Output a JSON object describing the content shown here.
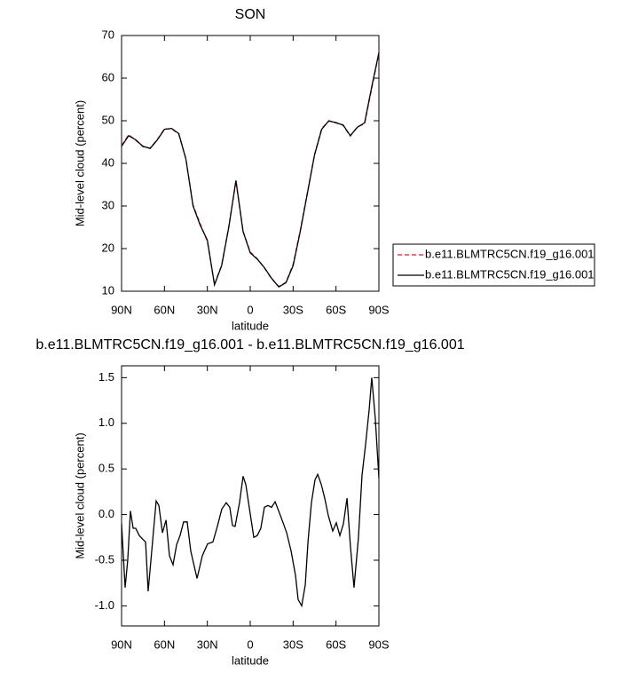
{
  "chart_data": [
    {
      "type": "line",
      "title": "SON",
      "xlabel": "latitude",
      "ylabel": "Mid-level cloud (percent)",
      "x": [
        90,
        85,
        80,
        75,
        70,
        65,
        60,
        55,
        50,
        45,
        40,
        35,
        30,
        25,
        20,
        15,
        10,
        5,
        0,
        -5,
        -10,
        -15,
        -20,
        -25,
        -30,
        -35,
        -40,
        -45,
        -50,
        -55,
        -60,
        -65,
        -70,
        -75,
        -80,
        -85,
        -90
      ],
      "series": [
        {
          "name": "b.e11.BLMTRC5CN.f19_g16.001",
          "color": "#d62020",
          "dash": true,
          "values": [
            44.2,
            46.7,
            45.4,
            43.9,
            43.6,
            45.6,
            48.1,
            48.1,
            46.9,
            41.1,
            30.2,
            25.8,
            21.7,
            11.6,
            16.1,
            25.2,
            35.8,
            24.1,
            19.2,
            17.6,
            15.4,
            12.9,
            11.1,
            12.1,
            16.3,
            24.3,
            33.2,
            42.1,
            48.2,
            49.9,
            49.6,
            48.9,
            46.4,
            48.6,
            49.3,
            57.6,
            65.8
          ]
        },
        {
          "name": "b.e11.BLMTRC5CN.f19_g16.001",
          "color": "#000000",
          "dash": false,
          "values": [
            44.0,
            46.5,
            45.5,
            44.0,
            43.5,
            45.5,
            48.0,
            48.2,
            47.0,
            41.0,
            30.0,
            25.5,
            22.0,
            11.5,
            16.0,
            25.0,
            36.0,
            24.0,
            19.0,
            17.5,
            15.5,
            13.0,
            11.0,
            12.0,
            16.0,
            24.0,
            33.0,
            42.0,
            48.0,
            50.0,
            49.5,
            49.0,
            46.5,
            48.5,
            49.5,
            58.0,
            66.0
          ]
        }
      ],
      "xlim": [
        90,
        -90
      ],
      "xticks": [
        {
          "value": 90,
          "label": "90N"
        },
        {
          "value": 60,
          "label": "60N"
        },
        {
          "value": 30,
          "label": "30N"
        },
        0,
        {
          "value": -30,
          "label": "30S"
        },
        {
          "value": -60,
          "label": "60S"
        },
        {
          "value": -90,
          "label": "90S"
        }
      ],
      "ylim": [
        10,
        70
      ],
      "yticks": [
        10,
        20,
        30,
        40,
        50,
        60,
        70
      ],
      "legend": "right"
    },
    {
      "type": "line",
      "title": "b.e11.BLMTRC5CN.f19_g16.001 - b.e11.BLMTRC5CN.f19_g16.001",
      "xlabel": "latitude",
      "ylabel": "Mid-level cloud (percent)",
      "x": [
        90,
        87.5,
        85.7,
        83.8,
        81.9,
        80.1,
        77.6,
        75.2,
        73.2,
        71.4,
        68.9,
        65.8,
        63.9,
        61.4,
        58.9,
        56.5,
        54,
        51.5,
        49.1,
        46.6,
        44.1,
        41.6,
        37.2,
        33.5,
        29.8,
        26.1,
        23,
        19.9,
        16.8,
        14.3,
        12.4,
        10.6,
        7.5,
        5,
        3.1,
        0.6,
        -2.5,
        -4.9,
        -7.4,
        -9.9,
        -12.4,
        -14.9,
        -17.4,
        -19.9,
        -23,
        -25.5,
        -28.6,
        -31.7,
        -33.5,
        -36,
        -38.5,
        -40.4,
        -42.8,
        -45.3,
        -47.2,
        -49.7,
        -52.1,
        -54.6,
        -57.7,
        -60.2,
        -62.7,
        -65.2,
        -67.7,
        -70.1,
        -72.6,
        -75.7,
        -78.2,
        -80.7,
        -83.2,
        -85,
        -87.5,
        -90
      ],
      "values": [
        -0.1,
        -0.8,
        -0.5,
        0.04,
        -0.15,
        -0.15,
        -0.23,
        -0.27,
        -0.3,
        -0.84,
        -0.4,
        0.15,
        0.1,
        -0.2,
        -0.06,
        -0.45,
        -0.55,
        -0.33,
        -0.23,
        -0.08,
        -0.08,
        -0.4,
        -0.7,
        -0.45,
        -0.32,
        -0.3,
        -0.13,
        0.06,
        0.13,
        0.08,
        -0.12,
        -0.13,
        0.13,
        0.42,
        0.33,
        0.07,
        -0.25,
        -0.23,
        -0.15,
        0.08,
        0.1,
        0.08,
        0.14,
        0.04,
        -0.09,
        -0.2,
        -0.4,
        -0.67,
        -0.93,
        -1.0,
        -0.77,
        -0.3,
        0.13,
        0.38,
        0.44,
        0.33,
        0.18,
        -0.01,
        -0.18,
        -0.09,
        -0.23,
        -0.1,
        0.18,
        -0.35,
        -0.8,
        -0.25,
        0.43,
        0.77,
        1.15,
        1.5,
        1.05,
        0.4
      ],
      "color": "#000000",
      "xlim": [
        90,
        -90
      ],
      "xticks": [
        {
          "value": 90,
          "label": "90N"
        },
        {
          "value": 60,
          "label": "60N"
        },
        {
          "value": 30,
          "label": "30N"
        },
        0,
        {
          "value": -30,
          "label": "30S"
        },
        {
          "value": -60,
          "label": "60S"
        },
        {
          "value": -90,
          "label": "90S"
        }
      ],
      "ylim": [
        -1.22,
        1.63
      ],
      "yticks": [
        {
          "value": -1,
          "label": "-1.0"
        },
        -0.5,
        {
          "value": 0,
          "label": "0.0"
        },
        0.5,
        {
          "value": 1,
          "label": "1.0"
        },
        1.5
      ]
    }
  ]
}
